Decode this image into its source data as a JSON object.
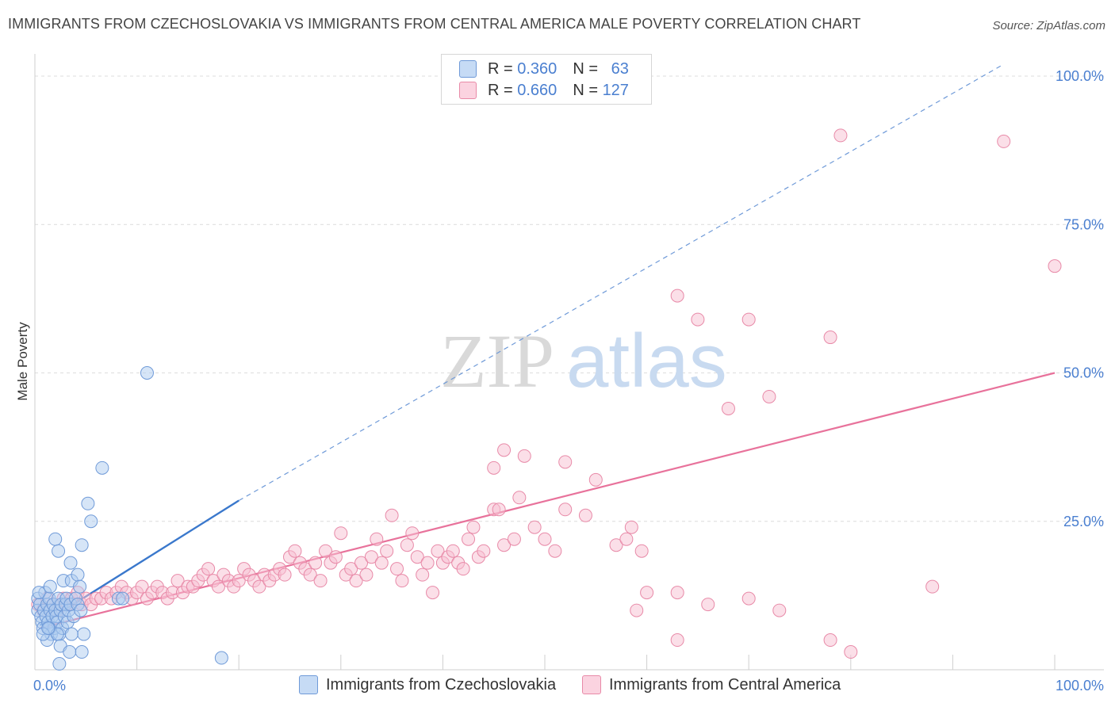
{
  "title": "IMMIGRANTS FROM CZECHOSLOVAKIA VS IMMIGRANTS FROM CENTRAL AMERICA MALE POVERTY CORRELATION CHART",
  "source": "Source: ZipAtlas.com",
  "watermark": {
    "zip": "ZIP",
    "atlas": "atlas"
  },
  "legend": {
    "r_label": "R =",
    "n_label": "N =",
    "series": [
      {
        "name": "Immigrants from Czechoslovakia",
        "r": "0.360",
        "n": "63",
        "color": "#aecbf0",
        "stroke": "#6f9ad8"
      },
      {
        "name": "Immigrants from Central America",
        "r": "0.660",
        "n": "127",
        "color": "#f8c0d2",
        "stroke": "#e88aa8"
      }
    ]
  },
  "chart_data": {
    "type": "scatter",
    "title": "IMMIGRANTS FROM CZECHOSLOVAKIA VS IMMIGRANTS FROM CENTRAL AMERICA MALE POVERTY CORRELATION CHART",
    "xlabel": "",
    "ylabel": "Male Poverty",
    "xlim": [
      0,
      100
    ],
    "ylim": [
      0,
      100
    ],
    "x_ticks": [
      "0.0%",
      "100.0%"
    ],
    "y_ticks": [
      {
        "value": 25,
        "label": "25.0%"
      },
      {
        "value": 50,
        "label": "50.0%"
      },
      {
        "value": 75,
        "label": "75.0%"
      },
      {
        "value": 100,
        "label": "100.0%"
      }
    ],
    "series": [
      {
        "name": "Immigrants from Czechoslovakia",
        "color": "#aecbf0",
        "stroke": "#6f9ad8",
        "trend": {
          "x0": 0.5,
          "y0": 7.5,
          "x1": 20,
          "y1": 28.5,
          "color": "#3a78cc"
        },
        "trend_ext": {
          "x0": 20,
          "y0": 28.5,
          "x1": 95,
          "y1": 102,
          "color": "#6f9ad8"
        },
        "points": [
          [
            0.3,
            12
          ],
          [
            0.3,
            10
          ],
          [
            0.5,
            11
          ],
          [
            0.6,
            9
          ],
          [
            0.7,
            8
          ],
          [
            0.8,
            7
          ],
          [
            0.9,
            10
          ],
          [
            1.0,
            13
          ],
          [
            1.1,
            9
          ],
          [
            1.2,
            11
          ],
          [
            1.3,
            8
          ],
          [
            1.4,
            12
          ],
          [
            1.5,
            10
          ],
          [
            1.6,
            6
          ],
          [
            1.7,
            9
          ],
          [
            1.8,
            11
          ],
          [
            1.9,
            7
          ],
          [
            2.0,
            10
          ],
          [
            2.1,
            9
          ],
          [
            2.2,
            8
          ],
          [
            2.3,
            12
          ],
          [
            2.4,
            6
          ],
          [
            2.5,
            10
          ],
          [
            2.6,
            11
          ],
          [
            2.7,
            7
          ],
          [
            2.8,
            15
          ],
          [
            2.9,
            9
          ],
          [
            3.0,
            11
          ],
          [
            3.1,
            12
          ],
          [
            3.2,
            8
          ],
          [
            3.3,
            10
          ],
          [
            3.5,
            11
          ],
          [
            3.6,
            15
          ],
          [
            3.8,
            9
          ],
          [
            4.0,
            12
          ],
          [
            4.2,
            11
          ],
          [
            4.5,
            10
          ],
          [
            4.8,
            6
          ],
          [
            1.2,
            5
          ],
          [
            1.4,
            7
          ],
          [
            2.2,
            6
          ],
          [
            2.5,
            4
          ],
          [
            3.6,
            6
          ],
          [
            2.0,
            22
          ],
          [
            2.3,
            20
          ],
          [
            3.5,
            18
          ],
          [
            4.2,
            16
          ],
          [
            4.6,
            21
          ],
          [
            4.4,
            14
          ],
          [
            5.5,
            25
          ],
          [
            5.2,
            28
          ],
          [
            6.6,
            34
          ],
          [
            8.2,
            12
          ],
          [
            8.6,
            12
          ],
          [
            11,
            50
          ],
          [
            2.4,
            1
          ],
          [
            3.4,
            3
          ],
          [
            4.6,
            3
          ],
          [
            18.3,
            2
          ],
          [
            1.5,
            14
          ],
          [
            0.8,
            6
          ],
          [
            1.3,
            7
          ],
          [
            0.4,
            13
          ]
        ]
      },
      {
        "name": "Immigrants from Central America",
        "color": "#f8c0d2",
        "stroke": "#e88aa8",
        "trend": {
          "x0": 0.5,
          "y0": 7,
          "x1": 100,
          "y1": 50,
          "color": "#e8729b"
        },
        "points": [
          [
            0.3,
            11
          ],
          [
            0.8,
            10
          ],
          [
            1.2,
            12
          ],
          [
            1.8,
            11
          ],
          [
            2.2,
            10
          ],
          [
            2.8,
            12
          ],
          [
            3.2,
            11
          ],
          [
            3.6,
            12
          ],
          [
            4.2,
            13
          ],
          [
            4.6,
            11
          ],
          [
            5.0,
            12
          ],
          [
            5.5,
            11
          ],
          [
            6.0,
            12
          ],
          [
            6.5,
            12
          ],
          [
            7.0,
            13
          ],
          [
            7.5,
            12
          ],
          [
            8.0,
            13
          ],
          [
            8.5,
            14
          ],
          [
            9.0,
            13
          ],
          [
            9.5,
            12
          ],
          [
            10.0,
            13
          ],
          [
            10.5,
            14
          ],
          [
            11.0,
            12
          ],
          [
            11.5,
            13
          ],
          [
            12.0,
            14
          ],
          [
            12.5,
            13
          ],
          [
            13.0,
            12
          ],
          [
            13.5,
            13
          ],
          [
            14.0,
            15
          ],
          [
            14.5,
            13
          ],
          [
            15.0,
            14
          ],
          [
            15.5,
            14
          ],
          [
            16.0,
            15
          ],
          [
            16.5,
            16
          ],
          [
            17.0,
            17
          ],
          [
            17.5,
            15
          ],
          [
            18.0,
            14
          ],
          [
            18.5,
            16
          ],
          [
            19.0,
            15
          ],
          [
            19.5,
            14
          ],
          [
            20.0,
            15
          ],
          [
            20.5,
            17
          ],
          [
            21.0,
            16
          ],
          [
            21.5,
            15
          ],
          [
            22.0,
            14
          ],
          [
            22.5,
            16
          ],
          [
            23.0,
            15
          ],
          [
            23.5,
            16
          ],
          [
            24.0,
            17
          ],
          [
            24.5,
            16
          ],
          [
            25.0,
            19
          ],
          [
            25.5,
            20
          ],
          [
            26.0,
            18
          ],
          [
            26.5,
            17
          ],
          [
            27.0,
            16
          ],
          [
            27.5,
            18
          ],
          [
            28.0,
            15
          ],
          [
            28.5,
            20
          ],
          [
            29.0,
            18
          ],
          [
            29.5,
            19
          ],
          [
            30.0,
            23
          ],
          [
            30.5,
            16
          ],
          [
            31.0,
            17
          ],
          [
            31.5,
            15
          ],
          [
            32.0,
            18
          ],
          [
            32.5,
            16
          ],
          [
            33.0,
            19
          ],
          [
            33.5,
            22
          ],
          [
            34.0,
            18
          ],
          [
            34.5,
            20
          ],
          [
            35.0,
            26
          ],
          [
            35.5,
            17
          ],
          [
            36.0,
            15
          ],
          [
            36.5,
            21
          ],
          [
            37.0,
            23
          ],
          [
            37.5,
            19
          ],
          [
            38.0,
            16
          ],
          [
            38.5,
            18
          ],
          [
            39.0,
            13
          ],
          [
            39.5,
            20
          ],
          [
            40.0,
            18
          ],
          [
            40.5,
            19
          ],
          [
            41.0,
            20
          ],
          [
            41.5,
            18
          ],
          [
            42.0,
            17
          ],
          [
            42.5,
            22
          ],
          [
            43.0,
            24
          ],
          [
            43.5,
            19
          ],
          [
            44.0,
            20
          ],
          [
            45.0,
            27
          ],
          [
            45.5,
            27
          ],
          [
            46.0,
            21
          ],
          [
            47.0,
            22
          ],
          [
            47.5,
            29
          ],
          [
            49.0,
            24
          ],
          [
            50.0,
            22
          ],
          [
            51.0,
            20
          ],
          [
            52.0,
            27
          ],
          [
            54.0,
            26
          ],
          [
            55.0,
            32
          ],
          [
            60.0,
            13
          ],
          [
            63.0,
            63
          ],
          [
            65.0,
            59
          ],
          [
            68.0,
            44
          ],
          [
            70.0,
            59
          ],
          [
            72.0,
            46
          ],
          [
            78.0,
            56
          ],
          [
            79.0,
            90
          ],
          [
            95.0,
            89
          ],
          [
            100.0,
            68
          ],
          [
            46.0,
            37
          ],
          [
            45.0,
            34
          ],
          [
            48.0,
            36
          ],
          [
            52.0,
            35
          ],
          [
            57.0,
            21
          ],
          [
            58.0,
            22
          ],
          [
            59.5,
            20
          ],
          [
            58.5,
            24
          ],
          [
            63.0,
            13
          ],
          [
            59.0,
            10
          ],
          [
            66.0,
            11
          ],
          [
            70.0,
            12
          ],
          [
            73.0,
            10
          ],
          [
            78.0,
            5
          ],
          [
            63.0,
            5
          ],
          [
            80.0,
            3
          ],
          [
            88.0,
            14
          ]
        ]
      }
    ]
  }
}
